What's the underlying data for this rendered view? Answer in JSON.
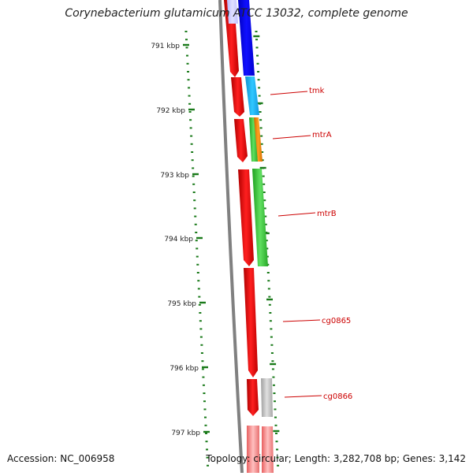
{
  "title": "Corynebacterium glutamicum ATCC 13032, complete genome",
  "footer": {
    "accession": "Accession: NC_006958",
    "summary": "Topology: circular; Length: 3,282,708 bp; Genes: 3,142"
  },
  "colors": {
    "backbone": "#808080",
    "ticks": "#1a7a1a",
    "gene_label": "#cc0000",
    "forward_strand": "#ff0000"
  },
  "ticks": [
    {
      "label": "791 kbp"
    },
    {
      "label": "792 kbp"
    },
    {
      "label": "793 kbp"
    },
    {
      "label": "794 kbp"
    },
    {
      "label": "795 kbp"
    },
    {
      "label": "796 kbp"
    },
    {
      "label": "797 kbp"
    }
  ],
  "genes": [
    {
      "name": "tmk",
      "color": "#18b4f0"
    },
    {
      "name": "mtrA",
      "color": "#f08c14"
    },
    {
      "name": "mtrB",
      "color": "#3cc83c"
    },
    {
      "name": "cg0865",
      "color": ""
    },
    {
      "name": "cg0866",
      "color": "#c8c8c8"
    }
  ]
}
